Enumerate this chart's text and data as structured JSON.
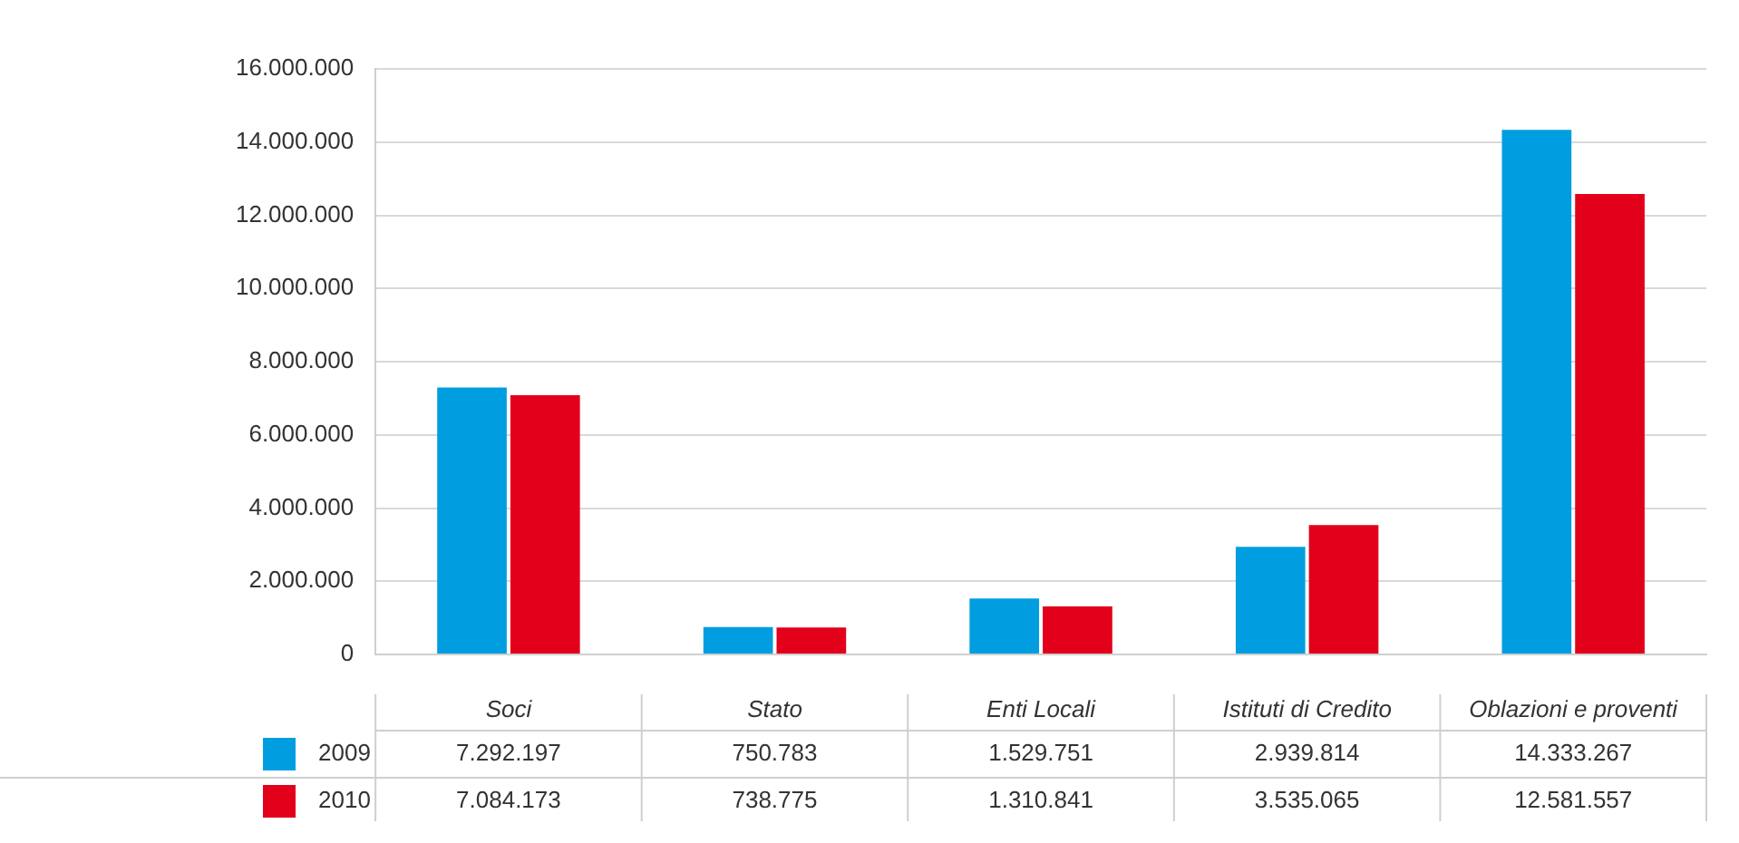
{
  "chart_data": {
    "type": "bar",
    "categories": [
      "Soci",
      "Stato",
      "Enti Locali",
      "Istituti di Credito",
      "Oblazioni e proventi"
    ],
    "series": [
      {
        "name": "2009",
        "color": "#009ee0",
        "values": [
          7292197,
          750783,
          1529751,
          2939814,
          14333267
        ],
        "value_labels": [
          "7.292.197",
          "750.783",
          "1.529.751",
          "2.939.814",
          "14.333.267"
        ]
      },
      {
        "name": "2010",
        "color": "#e2001a",
        "values": [
          7084173,
          738775,
          1310841,
          3535065,
          12581557
        ],
        "value_labels": [
          "7.084.173",
          "738.775",
          "1.310.841",
          "3.535.065",
          "12.581.557"
        ]
      }
    ],
    "ylim": [
      0,
      16000000
    ],
    "yticks": [
      {
        "value": 0,
        "label": "0"
      },
      {
        "value": 2000000,
        "label": "2.000.000"
      },
      {
        "value": 4000000,
        "label": "4.000.000"
      },
      {
        "value": 6000000,
        "label": "6.000.000"
      },
      {
        "value": 8000000,
        "label": "8.000.000"
      },
      {
        "value": 10000000,
        "label": "10.000.000"
      },
      {
        "value": 12000000,
        "label": "12.000.000"
      },
      {
        "value": 14000000,
        "label": "14.000.000"
      },
      {
        "value": 16000000,
        "label": "16.000.000"
      }
    ],
    "grid": "y",
    "legend": "bottom left"
  }
}
